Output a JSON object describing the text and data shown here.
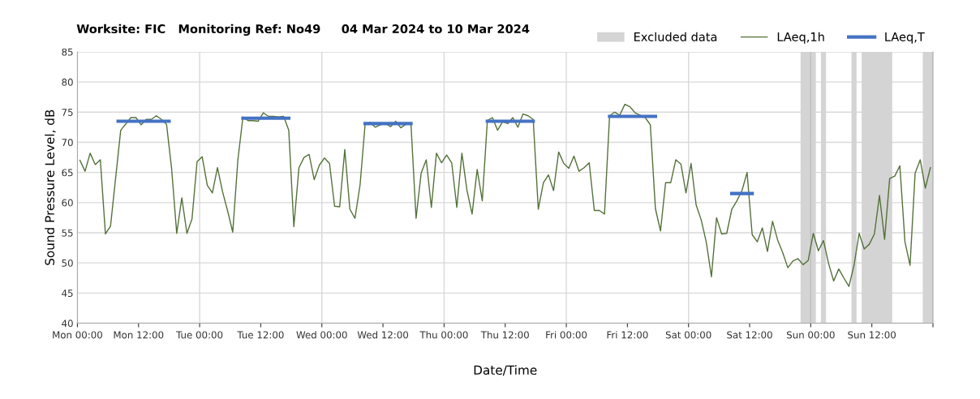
{
  "chart_data": {
    "type": "line",
    "title": "Worksite: FIC   Monitoring Ref: No49     04 Mar 2024 to 10 Mar 2024",
    "xlabel": "Date/Time",
    "ylabel": "Sound Pressure Level, dB",
    "xlim": [
      "2024-03-04T00:00",
      "2024-03-11T00:00"
    ],
    "ylim": [
      40,
      85
    ],
    "xticks": [
      {
        "value": "2024-03-04T00:00",
        "label": "Mon 00:00"
      },
      {
        "value": "2024-03-04T12:00",
        "label": "Mon 12:00"
      },
      {
        "value": "2024-03-05T00:00",
        "label": "Tue 00:00"
      },
      {
        "value": "2024-03-05T12:00",
        "label": "Tue 12:00"
      },
      {
        "value": "2024-03-06T00:00",
        "label": "Wed 00:00"
      },
      {
        "value": "2024-03-06T12:00",
        "label": "Wed 12:00"
      },
      {
        "value": "2024-03-07T00:00",
        "label": "Thu 00:00"
      },
      {
        "value": "2024-03-07T12:00",
        "label": "Thu 12:00"
      },
      {
        "value": "2024-03-08T00:00",
        "label": "Fri 00:00"
      },
      {
        "value": "2024-03-08T12:00",
        "label": "Fri 12:00"
      },
      {
        "value": "2024-03-09T00:00",
        "label": "Sat 00:00"
      },
      {
        "value": "2024-03-09T12:00",
        "label": "Sat 12:00"
      },
      {
        "value": "2024-03-10T00:00",
        "label": "Sun 00:00"
      },
      {
        "value": "2024-03-10T12:00",
        "label": "Sun 12:00"
      },
      {
        "value": "2024-03-11T00:00",
        "label": null
      }
    ],
    "yticks": [
      40,
      45,
      50,
      55,
      60,
      65,
      70,
      75,
      80,
      85
    ],
    "grid": "y",
    "legend": "top right",
    "marker": "none",
    "line_style": "solid",
    "ref_lines": [
      {
        "axis": "x",
        "value": "2024-03-05T00:00",
        "color": "#d9d9d9"
      },
      {
        "axis": "x",
        "value": "2024-03-06T00:00",
        "color": "#d9d9d9"
      },
      {
        "axis": "x",
        "value": "2024-03-07T00:00",
        "color": "#d9d9d9"
      },
      {
        "axis": "x",
        "value": "2024-03-08T00:00",
        "color": "#d9d9d9"
      },
      {
        "axis": "x",
        "value": "2024-03-09T00:00",
        "color": "#d9d9d9"
      },
      {
        "axis": "x",
        "value": "2024-03-10T00:00",
        "color": "#bfbfbf"
      }
    ],
    "bands": [
      {
        "axis": "x",
        "from": "2024-03-09T22:00",
        "to": "2024-03-10T01:00",
        "label": "Excluded data",
        "color": "#d4d4d4"
      },
      {
        "axis": "x",
        "from": "2024-03-10T02:00",
        "to": "2024-03-10T03:00",
        "color": "#d4d4d4"
      },
      {
        "axis": "x",
        "from": "2024-03-10T08:00",
        "to": "2024-03-10T09:00",
        "color": "#d4d4d4"
      },
      {
        "axis": "x",
        "from": "2024-03-10T10:00",
        "to": "2024-03-10T16:00",
        "color": "#d4d4d4"
      },
      {
        "axis": "x",
        "from": "2024-03-10T22:00",
        "to": "2024-03-11T00:00",
        "color": "#d4d4d4"
      }
    ],
    "series": [
      {
        "name": "LAeq,1h",
        "color": "#54713a",
        "x": [
          "2024-03-04T00:30",
          "2024-03-04T01:30",
          "2024-03-04T02:30",
          "2024-03-04T03:30",
          "2024-03-04T04:30",
          "2024-03-04T05:30",
          "2024-03-04T06:30",
          "2024-03-04T08:30",
          "2024-03-04T10:30",
          "2024-03-04T11:30",
          "2024-03-04T12:30",
          "2024-03-04T13:30",
          "2024-03-04T14:30",
          "2024-03-04T15:30",
          "2024-03-04T16:30",
          "2024-03-04T17:30",
          "2024-03-04T18:30",
          "2024-03-04T19:30",
          "2024-03-04T20:30",
          "2024-03-04T21:30",
          "2024-03-04T22:30",
          "2024-03-04T23:30",
          "2024-03-05T00:30",
          "2024-03-05T01:30",
          "2024-03-05T02:30",
          "2024-03-05T03:30",
          "2024-03-05T04:30",
          "2024-03-05T05:30",
          "2024-03-05T06:30",
          "2024-03-05T07:30",
          "2024-03-05T08:30",
          "2024-03-05T09:30",
          "2024-03-05T10:30",
          "2024-03-05T11:30",
          "2024-03-05T12:30",
          "2024-03-05T13:30",
          "2024-03-05T14:30",
          "2024-03-05T15:30",
          "2024-03-05T16:30",
          "2024-03-05T17:30",
          "2024-03-05T18:30",
          "2024-03-05T19:30",
          "2024-03-05T20:30",
          "2024-03-05T21:30",
          "2024-03-05T22:30",
          "2024-03-05T23:30",
          "2024-03-06T00:30",
          "2024-03-06T01:30",
          "2024-03-06T02:30",
          "2024-03-06T03:30",
          "2024-03-06T04:30",
          "2024-03-06T05:30",
          "2024-03-06T06:30",
          "2024-03-06T07:30",
          "2024-03-06T08:30",
          "2024-03-06T09:30",
          "2024-03-06T10:30",
          "2024-03-06T11:30",
          "2024-03-06T12:30",
          "2024-03-06T13:30",
          "2024-03-06T14:30",
          "2024-03-06T15:30",
          "2024-03-06T16:30",
          "2024-03-06T17:30",
          "2024-03-06T18:30",
          "2024-03-06T19:30",
          "2024-03-06T20:30",
          "2024-03-06T21:30",
          "2024-03-06T22:30",
          "2024-03-06T23:30",
          "2024-03-07T00:30",
          "2024-03-07T01:30",
          "2024-03-07T02:30",
          "2024-03-07T03:30",
          "2024-03-07T04:30",
          "2024-03-07T05:30",
          "2024-03-07T06:30",
          "2024-03-07T07:30",
          "2024-03-07T08:30",
          "2024-03-07T09:30",
          "2024-03-07T10:30",
          "2024-03-07T11:30",
          "2024-03-07T12:30",
          "2024-03-07T13:30",
          "2024-03-07T14:30",
          "2024-03-07T15:30",
          "2024-03-07T16:30",
          "2024-03-07T17:30",
          "2024-03-07T18:30",
          "2024-03-07T19:30",
          "2024-03-07T20:30",
          "2024-03-07T21:30",
          "2024-03-07T22:30",
          "2024-03-07T23:30",
          "2024-03-08T00:30",
          "2024-03-08T01:30",
          "2024-03-08T02:30",
          "2024-03-08T03:30",
          "2024-03-08T04:30",
          "2024-03-08T05:30",
          "2024-03-08T06:30",
          "2024-03-08T07:30",
          "2024-03-08T08:30",
          "2024-03-08T09:30",
          "2024-03-08T10:30",
          "2024-03-08T11:30",
          "2024-03-08T12:30",
          "2024-03-08T13:30",
          "2024-03-08T14:30",
          "2024-03-08T15:30",
          "2024-03-08T16:30",
          "2024-03-08T17:30",
          "2024-03-08T18:30",
          "2024-03-08T19:30",
          "2024-03-08T20:30",
          "2024-03-08T21:30",
          "2024-03-08T22:30",
          "2024-03-08T23:30",
          "2024-03-09T00:30",
          "2024-03-09T01:30",
          "2024-03-09T02:30",
          "2024-03-09T03:30",
          "2024-03-09T04:30",
          "2024-03-09T05:30",
          "2024-03-09T06:30",
          "2024-03-09T07:30",
          "2024-03-09T08:30",
          "2024-03-09T09:30",
          "2024-03-09T10:30",
          "2024-03-09T11:30",
          "2024-03-09T12:30",
          "2024-03-09T13:30",
          "2024-03-09T14:30",
          "2024-03-09T15:30",
          "2024-03-09T16:30",
          "2024-03-09T17:30",
          "2024-03-09T18:30",
          "2024-03-09T19:30",
          "2024-03-09T20:30",
          "2024-03-09T21:30",
          "2024-03-09T22:30",
          "2024-03-09T23:30",
          "2024-03-10T00:30",
          "2024-03-10T01:30",
          "2024-03-10T02:30",
          "2024-03-10T03:30",
          "2024-03-10T04:30",
          "2024-03-10T05:30",
          "2024-03-10T06:30",
          "2024-03-10T07:30",
          "2024-03-10T08:30",
          "2024-03-10T09:30",
          "2024-03-10T10:30",
          "2024-03-10T11:30",
          "2024-03-10T12:30",
          "2024-03-10T13:30",
          "2024-03-10T14:30",
          "2024-03-10T15:30",
          "2024-03-10T16:30",
          "2024-03-10T17:30",
          "2024-03-10T18:30",
          "2024-03-10T19:30",
          "2024-03-10T20:30",
          "2024-03-10T21:30",
          "2024-03-10T22:30",
          "2024-03-10T23:30"
        ],
        "values": [
          67.0,
          65.2,
          68.2,
          66.3,
          67.1,
          54.8,
          56.1,
          72.0,
          74.1,
          74.1,
          72.9,
          73.8,
          73.8,
          74.4,
          73.8,
          73.0,
          65.6,
          54.9,
          60.8,
          54.9,
          57.3,
          66.8,
          67.6,
          62.9,
          61.6,
          65.8,
          61.8,
          58.6,
          55.1,
          67.0,
          74.2,
          73.6,
          73.6,
          73.5,
          74.9,
          74.3,
          74.3,
          74.2,
          74.3,
          72.0,
          56.0,
          65.8,
          67.5,
          68.0,
          63.8,
          66.2,
          67.4,
          66.5,
          59.4,
          59.3,
          68.8,
          58.9,
          57.4,
          62.9,
          73.1,
          73.3,
          72.5,
          72.9,
          73.1,
          72.6,
          73.5,
          72.4,
          73.0,
          73.0,
          57.4,
          64.9,
          67.1,
          59.2,
          68.2,
          66.6,
          67.9,
          66.6,
          59.2,
          68.2,
          62.0,
          58.1,
          65.5,
          60.3,
          73.6,
          74.1,
          72.0,
          73.4,
          73.1,
          74.1,
          72.5,
          74.7,
          74.4,
          73.8,
          58.9,
          63.3,
          64.6,
          62.0,
          68.4,
          66.5,
          65.7,
          67.7,
          65.2,
          65.8,
          66.6,
          58.7,
          58.7,
          58.1,
          74.4,
          75.0,
          74.5,
          76.3,
          75.9,
          74.9,
          74.5,
          74.1,
          72.9,
          59.0,
          55.3,
          63.3,
          63.3,
          67.1,
          66.4,
          61.6,
          66.5,
          59.6,
          57.1,
          53.4,
          47.7,
          57.5,
          54.8,
          54.9,
          58.9,
          60.3,
          62.0,
          65.0,
          54.7,
          53.5,
          55.8,
          51.9,
          56.9,
          53.8,
          51.7,
          49.2,
          50.3,
          50.7,
          49.7,
          50.4,
          54.9,
          52.0,
          53.7,
          49.9,
          47.0,
          49.0,
          47.5,
          46.1,
          49.6,
          54.9,
          52.3,
          53.1,
          54.8,
          61.2,
          53.9,
          64.0,
          64.4,
          66.1,
          53.5,
          49.6,
          64.9,
          67.1,
          62.4,
          65.8
        ]
      },
      {
        "name": "LAeq,T",
        "color": "#4472c4",
        "x": [
          "2024-03-04T08:00",
          "2024-03-04T18:00"
        ],
        "values": [
          73.5,
          73.5
        ]
      },
      {
        "color": "#4472c4",
        "x": [
          "2024-03-05T08:30",
          "2024-03-05T17:30"
        ],
        "values": [
          74.0,
          74.0
        ]
      },
      {
        "color": "#4472c4",
        "x": [
          "2024-03-06T08:30",
          "2024-03-06T17:30"
        ],
        "values": [
          73.1,
          73.1
        ]
      },
      {
        "color": "#4472c4",
        "x": [
          "2024-03-07T08:30",
          "2024-03-07T17:30"
        ],
        "values": [
          73.5,
          73.5
        ]
      },
      {
        "color": "#4472c4",
        "x": [
          "2024-03-08T08:30",
          "2024-03-08T17:30"
        ],
        "values": [
          74.3,
          74.3
        ]
      },
      {
        "color": "#4472c4",
        "x": [
          "2024-03-09T08:30",
          "2024-03-09T12:30"
        ],
        "values": [
          61.5,
          61.5
        ]
      }
    ]
  }
}
